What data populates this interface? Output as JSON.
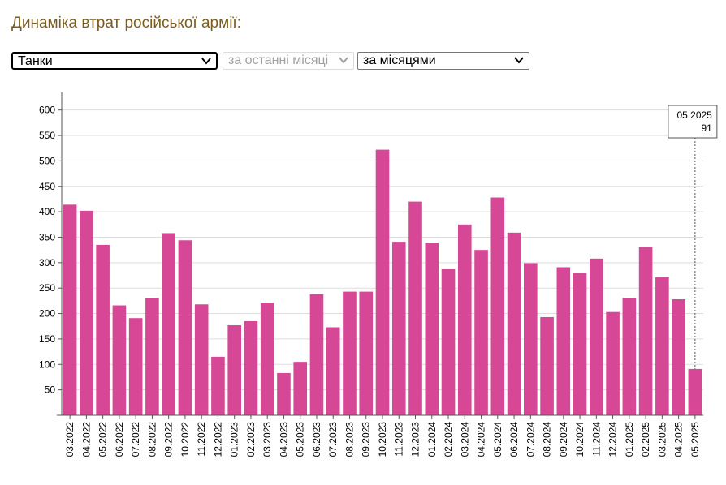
{
  "header": {
    "title": "Динаміка втрат російської армії:"
  },
  "filters": {
    "category": "Танки",
    "period": "за останні місяці",
    "grouping": "за місяцями"
  },
  "tooltip": {
    "label": "05.2025",
    "value": "91"
  },
  "colors": {
    "bar": "#d64896",
    "grid": "#dddddd",
    "axis": "#555555"
  },
  "chart_data": {
    "type": "bar",
    "categories": [
      "03.2022",
      "04.2022",
      "05.2022",
      "06.2022",
      "07.2022",
      "08.2022",
      "09.2022",
      "10.2022",
      "11.2022",
      "12.2022",
      "01.2023",
      "02.2023",
      "03.2023",
      "04.2023",
      "05.2023",
      "06.2023",
      "07.2023",
      "08.2023",
      "09.2023",
      "10.2023",
      "11.2023",
      "12.2023",
      "01.2024",
      "02.2024",
      "03.2024",
      "04.2024",
      "05.2024",
      "06.2024",
      "07.2024",
      "08.2024",
      "09.2024",
      "10.2024",
      "11.2024",
      "12.2024",
      "01.2025",
      "02.2025",
      "03.2025",
      "04.2025",
      "05.2025"
    ],
    "values": [
      414,
      402,
      335,
      216,
      191,
      230,
      358,
      344,
      218,
      115,
      177,
      185,
      221,
      83,
      105,
      238,
      173,
      243,
      243,
      522,
      341,
      420,
      339,
      287,
      375,
      325,
      428,
      359,
      299,
      193,
      291,
      280,
      308,
      203,
      230,
      331,
      271,
      228,
      91
    ],
    "yticks": [
      50,
      100,
      150,
      200,
      250,
      300,
      350,
      400,
      450,
      500,
      550,
      600
    ],
    "ylim": [
      0,
      625
    ],
    "grid": true,
    "highlight_index": 38
  }
}
